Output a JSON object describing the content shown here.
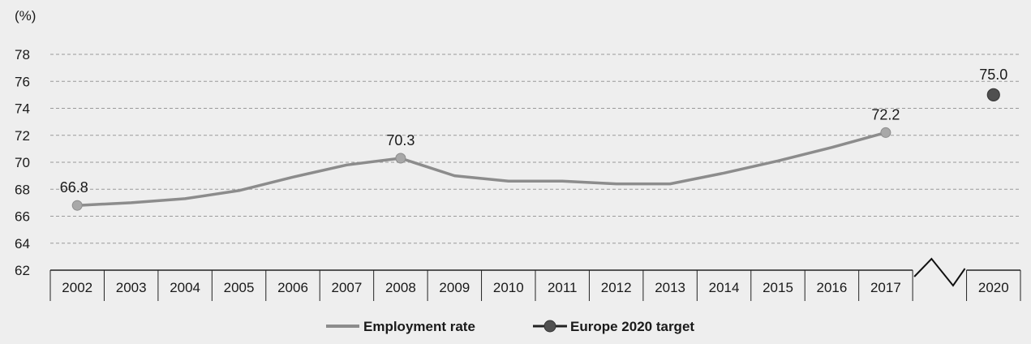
{
  "chart_data": {
    "type": "line",
    "y_unit_label": "(%)",
    "ylim": [
      62,
      78
    ],
    "y_ticks": [
      62,
      64,
      66,
      68,
      70,
      72,
      74,
      76,
      78
    ],
    "grid": "horizontal dashed",
    "categories": [
      "2002",
      "2003",
      "2004",
      "2005",
      "2006",
      "2007",
      "2008",
      "2009",
      "2010",
      "2011",
      "2012",
      "2013",
      "2014",
      "2015",
      "2016",
      "2017",
      "",
      "2020"
    ],
    "axis_break_after": "2017",
    "legend_position": "bottom-center",
    "series": [
      {
        "name": "Employment rate",
        "kind": "line",
        "color": "#8c8c8c",
        "x": [
          "2002",
          "2003",
          "2004",
          "2005",
          "2006",
          "2007",
          "2008",
          "2009",
          "2010",
          "2011",
          "2012",
          "2013",
          "2014",
          "2015",
          "2016",
          "2017"
        ],
        "values": [
          66.8,
          67.0,
          67.3,
          67.9,
          68.9,
          69.8,
          70.3,
          69.0,
          68.6,
          68.6,
          68.4,
          68.4,
          69.2,
          70.1,
          71.1,
          72.2
        ],
        "labeled_points": [
          {
            "x": "2002",
            "label": "66.8"
          },
          {
            "x": "2008",
            "label": "70.3"
          },
          {
            "x": "2017",
            "label": "72.2"
          }
        ]
      },
      {
        "name": "Europe 2020 target",
        "kind": "point",
        "color": "#505050",
        "x": [
          "2020"
        ],
        "values": [
          75.0
        ],
        "labeled_points": [
          {
            "x": "2020",
            "label": "75.0"
          }
        ]
      }
    ]
  }
}
